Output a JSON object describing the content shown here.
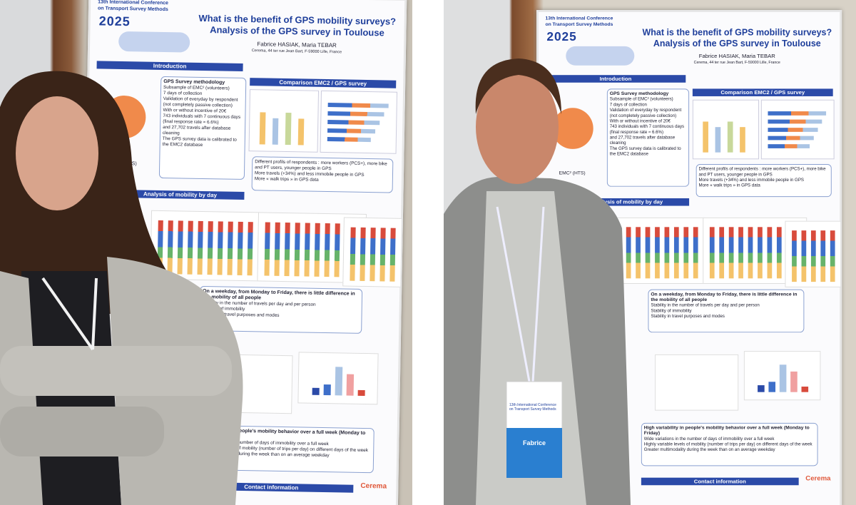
{
  "conference": {
    "edition": "13th International Conference",
    "name": "on Transport Survey Methods",
    "year": "2025"
  },
  "poster": {
    "title": "What is the benefit of GPS mobility surveys?",
    "subtitle": "Analysis of the GPS survey in Toulouse",
    "authors": "Fabrice HASIAK, Maria TEBAR",
    "affiliation": "Cerema, 44 ter rue Jean Bart, F-59000 Lille, France",
    "sections": [
      "Introduction",
      "Comparison EMC2 / GPS survey",
      "Analysis of mobility by day"
    ],
    "methodology": {
      "heading": "GPS Survey methodology",
      "bullets": [
        "Subsample of EMC² (volunteers)",
        "7 days of collection",
        "Validation of everyday by respondent (not completely passive collection)",
        "With or without incentive of 20€",
        "743 individuals with 7 continuous days (final response rate ≈ 6.6%)",
        "and 27,702 travels after database cleaning",
        "The GPS survey data is calibrated to the EMC2 database"
      ]
    },
    "comparison": [
      "Different profils of respondents : more workers (PCS+), more bike and PT users, younger people in GPS",
      "More travels (+34%) and less immobile people in GPS",
      "More « walk trips » in GPS data"
    ],
    "findings": [
      "On a weekday, from Monday to Friday, there is little difference in the mobility of all people",
      "Stability in the number of travels per day and per person",
      "Stability of immobility",
      "Stability in travel purposes and modes"
    ],
    "conclusion": {
      "heading": "High variability in people's mobility behavior over a full week (Monday to Friday)",
      "bullets": [
        "Wide variations in the number of days of immobility over a full week",
        "Highly variable levels of mobility (number of trips per day) on different days of the week",
        "Greater multimodality during the week than on an average weekday"
      ]
    },
    "emc2_label": "EMC² (HTS)",
    "footer": "Contact information",
    "logo": "Cerema"
  },
  "badge": {
    "event": "13th International Conference on Transport Survey Methods",
    "name": "Fabrice"
  }
}
